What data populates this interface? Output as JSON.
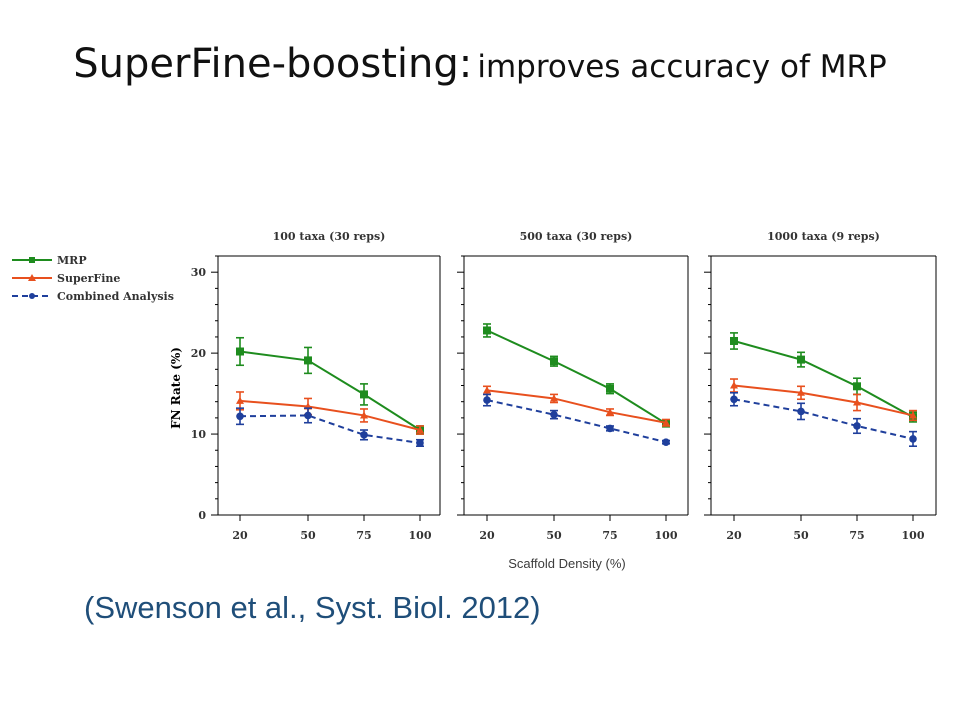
{
  "slide": {
    "title_main": "SuperFine-boosting:",
    "title_sub": "improves accuracy of MRP",
    "citation": "(Swenson et al., Syst. Biol. 2012)"
  },
  "colors": {
    "MRP": "#1e8c1e",
    "SuperFine": "#e8501e",
    "Combined Analysis": "#1f3f9c",
    "axes": "#000000",
    "caption": "#3c3c3c"
  },
  "chart_data": {
    "type": "line",
    "ylabel": "FN Rate (%)",
    "xlabel": "Scaffold Density (%)",
    "legend": {
      "placement": "left, outside panels",
      "entries": [
        "MRP",
        "SuperFine",
        "Combined Analysis"
      ]
    },
    "ylim": [
      0,
      32
    ],
    "yticks": [
      0,
      10,
      20,
      30
    ],
    "x_categories": [
      "20",
      "50",
      "75",
      "100"
    ],
    "grid": false,
    "panels": [
      {
        "title": "100 taxa (30 reps)",
        "series": [
          {
            "name": "MRP",
            "marker": "square",
            "dash": "solid",
            "values": [
              20.2,
              19.1,
              14.9,
              10.5
            ],
            "errors": [
              1.7,
              1.6,
              1.3,
              0.5
            ]
          },
          {
            "name": "SuperFine",
            "marker": "triangle",
            "dash": "solid",
            "values": [
              14.1,
              13.4,
              12.3,
              10.5
            ],
            "errors": [
              1.1,
              1.0,
              0.8,
              0.5
            ]
          },
          {
            "name": "Combined Analysis",
            "marker": "circle",
            "dash": "dashed",
            "values": [
              12.2,
              12.3,
              9.9,
              8.9
            ],
            "errors": [
              1.0,
              0.9,
              0.6,
              0.4
            ]
          }
        ]
      },
      {
        "title": "500 taxa (30 reps)",
        "series": [
          {
            "name": "MRP",
            "marker": "square",
            "dash": "solid",
            "values": [
              22.8,
              19.0,
              15.6,
              11.3
            ],
            "errors": [
              0.8,
              0.6,
              0.6,
              0.4
            ]
          },
          {
            "name": "SuperFine",
            "marker": "triangle",
            "dash": "solid",
            "values": [
              15.4,
              14.4,
              12.7,
              11.4
            ],
            "errors": [
              0.5,
              0.5,
              0.4,
              0.4
            ]
          },
          {
            "name": "Combined Analysis",
            "marker": "circle",
            "dash": "dashed",
            "values": [
              14.2,
              12.4,
              10.7,
              9.0
            ],
            "errors": [
              0.7,
              0.5,
              0.3,
              0.2
            ]
          }
        ]
      },
      {
        "title": "1000 taxa (9 reps)",
        "series": [
          {
            "name": "MRP",
            "marker": "square",
            "dash": "solid",
            "values": [
              21.5,
              19.2,
              15.9,
              12.1
            ],
            "errors": [
              1.0,
              0.9,
              1.0,
              0.6
            ]
          },
          {
            "name": "SuperFine",
            "marker": "triangle",
            "dash": "solid",
            "values": [
              16.0,
              15.1,
              13.9,
              12.3
            ],
            "errors": [
              0.8,
              0.8,
              1.0,
              0.6
            ]
          },
          {
            "name": "Combined Analysis",
            "marker": "circle",
            "dash": "dashed",
            "values": [
              14.3,
              12.8,
              11.0,
              9.4
            ],
            "errors": [
              0.8,
              1.0,
              0.9,
              0.9
            ]
          }
        ]
      }
    ]
  }
}
